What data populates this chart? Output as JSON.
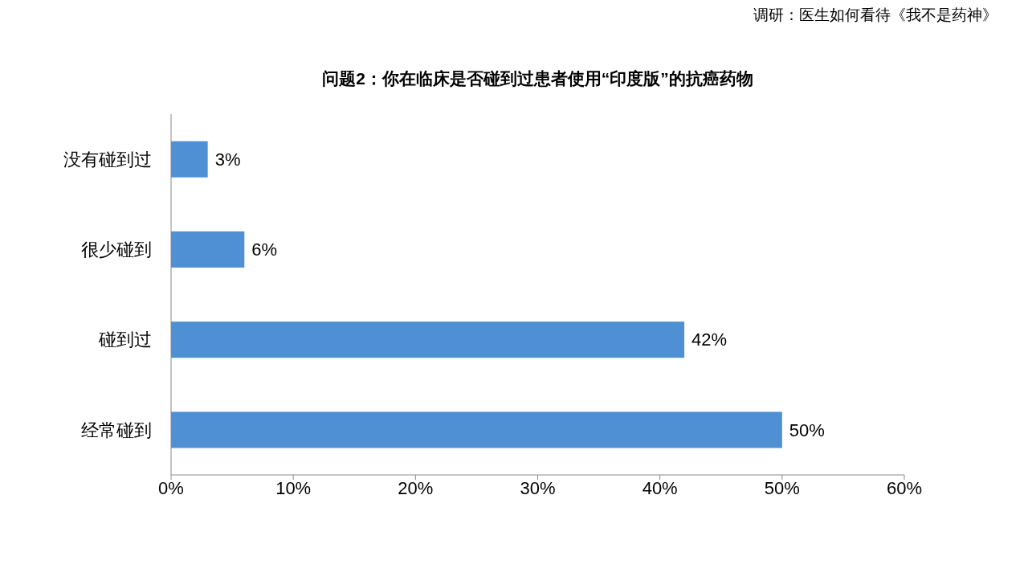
{
  "chart_data": {
    "type": "bar",
    "orientation": "horizontal",
    "title": "问题2：你在临床是否碰到过患者使用“印度版”的抗癌药物",
    "annotations": [
      "调研：医生如何看待《我不是药神》"
    ],
    "categories": [
      "没有碰到过",
      "很少碰到",
      "碰到过",
      "经常碰到"
    ],
    "values": [
      3,
      6,
      42,
      50
    ],
    "value_labels": [
      "3%",
      "6%",
      "42%",
      "50%"
    ],
    "color": "#4f8fd4",
    "xlim": [
      0,
      60
    ],
    "xticks": [
      {
        "value": 0,
        "label": "0%"
      },
      {
        "value": 10,
        "label": "10%"
      },
      {
        "value": 20,
        "label": "20%"
      },
      {
        "value": 30,
        "label": "30%"
      },
      {
        "value": 40,
        "label": "40%"
      },
      {
        "value": 50,
        "label": "50%"
      },
      {
        "value": 60,
        "label": "60%"
      }
    ]
  }
}
